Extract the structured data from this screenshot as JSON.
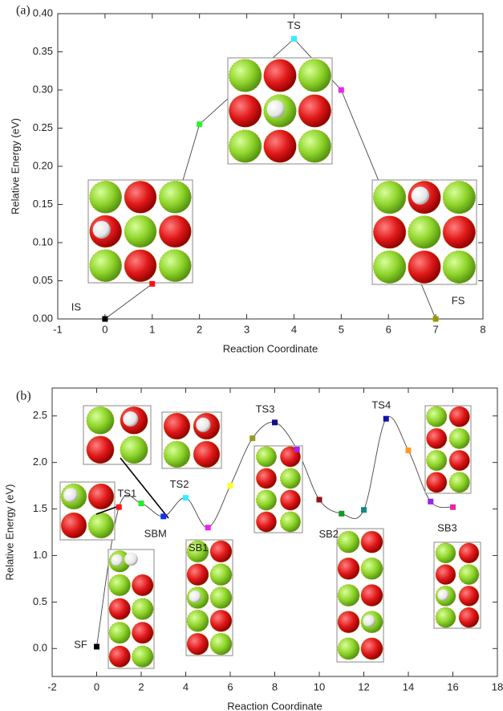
{
  "chart_data": [
    {
      "type": "line",
      "panel_label": "(a)",
      "xlabel": "Reaction Coordinate",
      "ylabel": "Relative Energy (eV)",
      "x": [
        0,
        1,
        2,
        4,
        5,
        7
      ],
      "values": [
        0,
        0.046,
        0.255,
        0.367,
        0.3,
        0
      ],
      "colors": [
        "#000000",
        "#ff1010",
        "#30ee30",
        "#30eeff",
        "#ee22ee",
        "#999900"
      ],
      "point_labels": [
        "IS",
        null,
        null,
        "TS",
        null,
        "FS"
      ],
      "xlim": [
        -1,
        8
      ],
      "ylim": [
        0,
        0.4
      ],
      "xticks": [
        -1,
        0,
        1,
        2,
        3,
        4,
        5,
        6,
        7,
        8
      ],
      "yticks": [
        {
          "value": 0,
          "label": "0.00"
        },
        0.05,
        {
          "value": 0.1,
          "label": "0.10"
        },
        0.15,
        {
          "value": 0.2,
          "label": "0.20"
        },
        0.25,
        {
          "value": 0.3,
          "label": "0.30"
        },
        0.35,
        {
          "value": 0.4,
          "label": "0.40"
        }
      ],
      "smooth": false
    },
    {
      "type": "line",
      "panel_label": "(b)",
      "xlabel": "Reaction Coordinate",
      "ylabel": "Relative Energy (eV)",
      "x": [
        0,
        1,
        2,
        3,
        4,
        5,
        6,
        7,
        8,
        9,
        10,
        11,
        12,
        13,
        14,
        15,
        16
      ],
      "values": [
        0.02,
        1.52,
        1.56,
        1.42,
        1.62,
        1.3,
        1.75,
        2.26,
        2.43,
        2.14,
        1.6,
        1.45,
        1.49,
        2.47,
        2.13,
        1.58,
        1.52
      ],
      "colors": [
        "#000000",
        "#ff1111",
        "#22ee22",
        "#1133ee",
        "#33eeff",
        "#ee22ee",
        "#ffff22",
        "#999922",
        "#111188",
        "#aa22ee",
        "#991111",
        "#119922",
        "#118888",
        "#1111aa",
        "#ff9922",
        "#9922ee",
        "#ee22aa"
      ],
      "point_labels": [
        "SF",
        "TS1",
        null,
        "SBM",
        "TS2",
        "SB1",
        null,
        null,
        "TS3",
        null,
        null,
        "SB2",
        null,
        "TS4",
        null,
        null,
        "SB3"
      ],
      "xlim": [
        -2,
        18
      ],
      "ylim": [
        -0.3,
        2.8
      ],
      "xticks": [
        -2,
        0,
        2,
        4,
        6,
        8,
        10,
        12,
        14,
        16,
        18
      ],
      "yticks": [
        {
          "value": 0,
          "label": "0.0"
        },
        0.5,
        {
          "value": 1,
          "label": "1.0"
        },
        1.5,
        {
          "value": 2,
          "label": "2.0"
        },
        2.5
      ],
      "smooth": true
    }
  ]
}
